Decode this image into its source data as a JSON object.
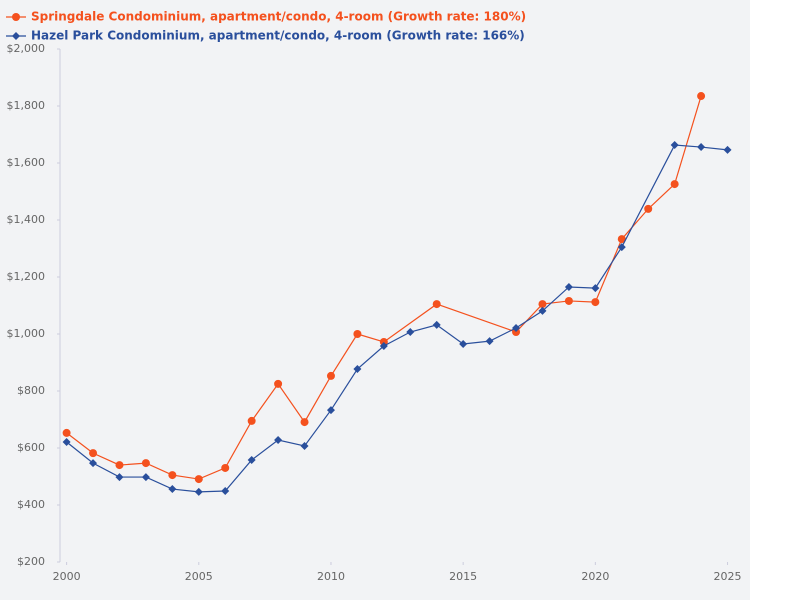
{
  "chart_data": {
    "type": "line",
    "xlim": [
      1999.75,
      2025.85
    ],
    "ylim": [
      200,
      2000
    ],
    "xticks": [
      2000,
      2005,
      2010,
      2015,
      2020,
      2025
    ],
    "yticks": [
      {
        "value": 200,
        "label": "$200"
      },
      {
        "value": 400,
        "label": "$400"
      },
      {
        "value": 600,
        "label": "$600"
      },
      {
        "value": 800,
        "label": "$800"
      },
      {
        "value": 1000,
        "label": "$1,000"
      },
      {
        "value": 1200,
        "label": "$1,200"
      },
      {
        "value": 1400,
        "label": "$1,400"
      },
      {
        "value": 1600,
        "label": "$1,600"
      },
      {
        "value": 1800,
        "label": "$1,800"
      },
      {
        "value": 2000,
        "label": "$2,000"
      }
    ],
    "grid": false,
    "legend": "top-left",
    "series": [
      {
        "name": "Springdale Condominium, apartment/condo, 4-room (Growth rate: 180%)",
        "color": "#f4511e",
        "marker": "circle",
        "x": [
          2000,
          2001,
          2002,
          2003,
          2004,
          2005,
          2006,
          2007,
          2008,
          2009,
          2010,
          2011,
          2012,
          2014,
          2017,
          2018,
          2019,
          2020,
          2021,
          2022,
          2023,
          2024
        ],
        "values": [
          653,
          582,
          540,
          547,
          505,
          491,
          530,
          695,
          825,
          691,
          853,
          1000,
          972,
          1105,
          1007,
          1105,
          1116,
          1112,
          1333,
          1439,
          1526,
          1835
        ]
      },
      {
        "name": "Hazel Park Condominium, apartment/condo, 4-room (Growth rate: 166%)",
        "color": "#2a4f9c",
        "marker": "diamond",
        "x": [
          2000,
          2001,
          2002,
          2003,
          2004,
          2005,
          2006,
          2007,
          2008,
          2009,
          2010,
          2011,
          2012,
          2013,
          2014,
          2015,
          2016,
          2017,
          2018,
          2019,
          2020,
          2021,
          2023,
          2024,
          2025
        ],
        "values": [
          621,
          547,
          498,
          498,
          456,
          446,
          449,
          558,
          628,
          607,
          733,
          877,
          958,
          1007,
          1032,
          965,
          975,
          1021,
          1081,
          1165,
          1161,
          1305,
          1663,
          1656,
          1646
        ]
      }
    ]
  }
}
